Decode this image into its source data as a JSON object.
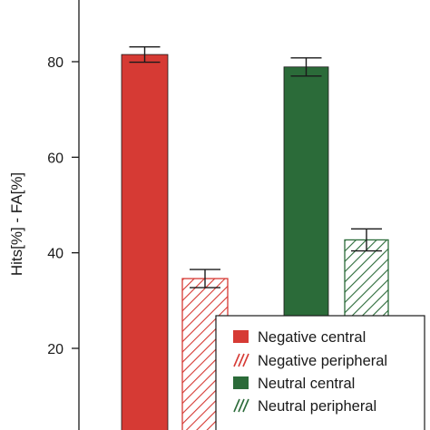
{
  "chart_data": {
    "type": "bar",
    "title": "",
    "xlabel": "",
    "ylabel": "Hits[%] - FA[%]",
    "y_ticks": [
      20,
      40,
      60,
      80
    ],
    "ylim": [
      4,
      94
    ],
    "grid": false,
    "legend_position": "bottom-right",
    "bars": [
      {
        "series": "Negative central",
        "value": 81.5,
        "error": 1.6
      },
      {
        "series": "Negative peripheral",
        "value": 34.6,
        "error": 1.9
      },
      {
        "series": "Neutral central",
        "value": 78.9,
        "error": 1.9
      },
      {
        "series": "Neutral peripheral",
        "value": 42.7,
        "error": 2.3
      }
    ],
    "series": [
      {
        "name": "Negative central",
        "color": "#d63a34",
        "pattern": "solid"
      },
      {
        "name": "Negative peripheral",
        "color": "#d63a34",
        "pattern": "hatched"
      },
      {
        "name": "Neutral central",
        "color": "#2b6b39",
        "pattern": "solid"
      },
      {
        "name": "Neutral peripheral",
        "color": "#2b6b39",
        "pattern": "hatched"
      }
    ]
  }
}
